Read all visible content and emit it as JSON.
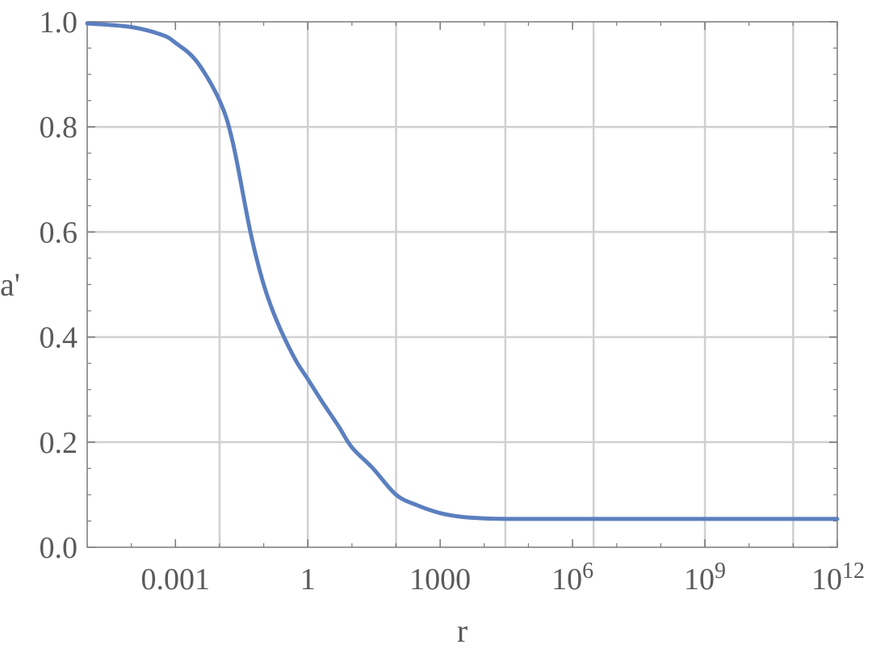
{
  "chart_data": {
    "type": "line",
    "xlabel": "r",
    "ylabel": "a'",
    "x_scale": "log10",
    "xlim": [
      1e-05,
      1000000000000.0
    ],
    "ylim": [
      0,
      1
    ],
    "grid": true,
    "legend": "none",
    "x_ticks": [
      {
        "value": 0.001,
        "label": "0.001"
      },
      {
        "value": 1,
        "label": "1"
      },
      {
        "value": 1000,
        "label": "1000"
      },
      {
        "value": 1000000,
        "label": "10",
        "sup": "6"
      },
      {
        "value": 1000000000,
        "label": "10",
        "sup": "9"
      },
      {
        "value": 1000000000000,
        "label": "10",
        "sup": "12"
      }
    ],
    "x_gridlines": [
      0.01,
      1,
      100,
      30000,
      3000000,
      1000000000,
      100000000000
    ],
    "y_ticks": [
      {
        "value": 0.0,
        "label": "0.0"
      },
      {
        "value": 0.2,
        "label": "0.2"
      },
      {
        "value": 0.4,
        "label": "0.4"
      },
      {
        "value": 0.6,
        "label": "0.6"
      },
      {
        "value": 0.8,
        "label": "0.8"
      },
      {
        "value": 1.0,
        "label": "1.0"
      }
    ],
    "series": [
      {
        "color": "#5b7fbf",
        "x": [
          1e-05,
          0.0001,
          0.0005,
          0.001,
          0.003,
          0.01,
          0.02,
          0.05,
          0.1,
          0.2,
          0.5,
          1,
          2,
          5,
          10,
          30,
          100,
          300,
          1000,
          3000,
          10000,
          30000,
          100000,
          1000000,
          100000000.0,
          10000000000.0,
          1000000000000.0
        ],
        "y": [
          0.997,
          0.99,
          0.975,
          0.96,
          0.925,
          0.85,
          0.77,
          0.6,
          0.5,
          0.43,
          0.36,
          0.32,
          0.28,
          0.23,
          0.19,
          0.15,
          0.1,
          0.08,
          0.065,
          0.058,
          0.055,
          0.054,
          0.054,
          0.054,
          0.054,
          0.054,
          0.054
        ]
      }
    ]
  }
}
